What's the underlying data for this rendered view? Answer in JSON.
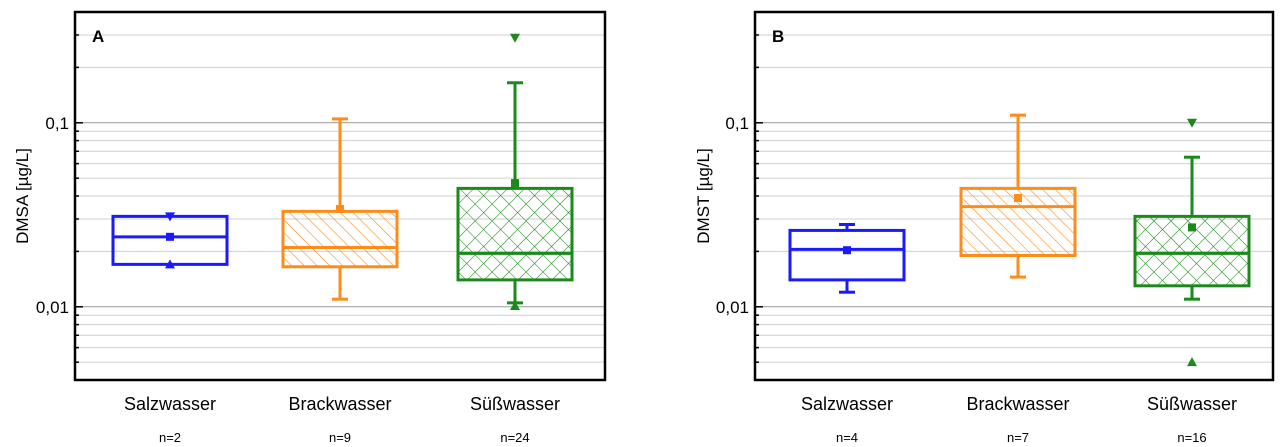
{
  "chart_data": [
    {
      "type": "boxplot",
      "panel_label": "A",
      "ylabel": "DMSA [µg/L]",
      "yscale": "log",
      "ylim": [
        0.004,
        0.4
      ],
      "yticks": [
        {
          "value": 0.01,
          "label": "0,01"
        },
        {
          "value": 0.1,
          "label": "0,1"
        }
      ],
      "grid": true,
      "categories": [
        "Salzwasser",
        "Brackwasser",
        "Süßwasser"
      ],
      "n_labels": [
        "n=2",
        "n=9",
        "n=24"
      ],
      "colors": [
        "#1a1aff",
        "#ff8c1a",
        "#1a8a1a"
      ],
      "fills": [
        "none",
        "hatch",
        "crosshatch"
      ],
      "boxes": [
        {
          "q1": 0.017,
          "median": 0.024,
          "q3": 0.031,
          "whisker_low": null,
          "whisker_high": null,
          "mean": 0.024,
          "min": 0.017,
          "max": 0.031
        },
        {
          "q1": 0.0165,
          "median": 0.021,
          "q3": 0.033,
          "whisker_low": 0.011,
          "whisker_high": 0.105,
          "mean": 0.034,
          "min": null,
          "max": null
        },
        {
          "q1": 0.014,
          "median": 0.0195,
          "q3": 0.044,
          "whisker_low": 0.0105,
          "whisker_high": 0.165,
          "mean": 0.047,
          "min": 0.0101,
          "max": 0.29
        }
      ]
    },
    {
      "type": "boxplot",
      "panel_label": "B",
      "ylabel": "DMST [µg/L]",
      "yscale": "log",
      "ylim": [
        0.004,
        0.4
      ],
      "yticks": [
        {
          "value": 0.01,
          "label": "0,01"
        },
        {
          "value": 0.1,
          "label": "0,1"
        }
      ],
      "grid": true,
      "categories": [
        "Salzwasser",
        "Brackwasser",
        "Süßwasser"
      ],
      "n_labels": [
        "n=4",
        "n=7",
        "n=16"
      ],
      "colors": [
        "#1a1aff",
        "#ff8c1a",
        "#1a8a1a"
      ],
      "fills": [
        "none",
        "hatch",
        "crosshatch"
      ],
      "boxes": [
        {
          "q1": 0.014,
          "median": 0.0205,
          "q3": 0.026,
          "whisker_low": 0.012,
          "whisker_high": 0.028,
          "mean": 0.0203,
          "min": null,
          "max": null
        },
        {
          "q1": 0.019,
          "median": 0.035,
          "q3": 0.044,
          "whisker_low": 0.0145,
          "whisker_high": 0.11,
          "mean": 0.039,
          "min": null,
          "max": null
        },
        {
          "q1": 0.013,
          "median": 0.0195,
          "q3": 0.031,
          "whisker_low": 0.011,
          "whisker_high": 0.065,
          "mean": 0.027,
          "min": 0.005,
          "max": 0.1
        }
      ]
    }
  ]
}
